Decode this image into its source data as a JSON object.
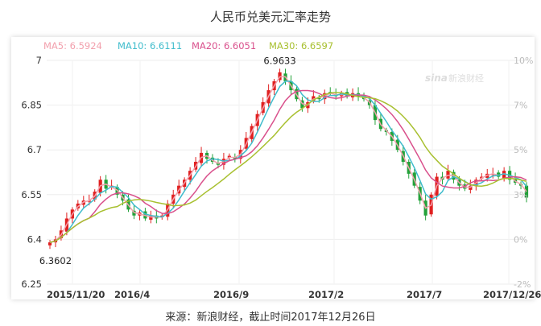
{
  "title": "人民币兑美元汇率走势",
  "caption": "来源：新浪财经，截止时间2017年12月26日",
  "watermark": "新浪财经",
  "colors": {
    "up": "#e02020",
    "down": "#23a23a",
    "ma5": "#f2a0ad",
    "ma10": "#3fbccc",
    "ma20": "#d9508c",
    "ma30": "#a8c030"
  },
  "chart_data": {
    "type": "candlestick",
    "legend": [
      {
        "name": "MA5",
        "text": "MA5: 6.5924",
        "color": "#f2a0ad"
      },
      {
        "name": "MA10",
        "text": "MA10: 6.6111",
        "color": "#3fbccc"
      },
      {
        "name": "MA20",
        "text": "MA20: 6.6051",
        "color": "#d9508c"
      },
      {
        "name": "MA30",
        "text": "MA30: 6.6597",
        "color": "#a8c030"
      }
    ],
    "y_ticks": [
      "7",
      "6.85",
      "6.7",
      "6.55",
      "6.4",
      "6.25"
    ],
    "y_tick_values": [
      7,
      6.85,
      6.7,
      6.55,
      6.4,
      6.25
    ],
    "ylim": [
      6.25,
      7.0
    ],
    "y2_ticks": [
      "10%",
      "7%",
      "5%",
      "3%",
      "0%",
      "-2%"
    ],
    "x_ticks": [
      "2015/11/20",
      "2016/4",
      "2016/9",
      "2017/2",
      "2017/7",
      "2017/12/26"
    ],
    "annotations": [
      {
        "label": "6.9633",
        "index": 41,
        "value": 6.9633,
        "pos": "above"
      },
      {
        "label": "6.3602",
        "index": 1,
        "value": 6.3602,
        "pos": "below"
      }
    ],
    "close": [
      6.39,
      6.4,
      6.43,
      6.47,
      6.5,
      6.52,
      6.53,
      6.53,
      6.56,
      6.6,
      6.57,
      6.58,
      6.55,
      6.53,
      6.5,
      6.48,
      6.49,
      6.47,
      6.48,
      6.47,
      6.48,
      6.52,
      6.55,
      6.58,
      6.6,
      6.63,
      6.66,
      6.69,
      6.67,
      6.66,
      6.65,
      6.67,
      6.68,
      6.67,
      6.7,
      6.74,
      6.78,
      6.82,
      6.86,
      6.9,
      6.93,
      6.96,
      6.93,
      6.9,
      6.87,
      6.84,
      6.86,
      6.88,
      6.87,
      6.89,
      6.89,
      6.88,
      6.89,
      6.88,
      6.89,
      6.88,
      6.87,
      6.85,
      6.8,
      6.77,
      6.76,
      6.73,
      6.7,
      6.66,
      6.62,
      6.58,
      6.53,
      6.48,
      6.55,
      6.61,
      6.6,
      6.63,
      6.6,
      6.58,
      6.57,
      6.58,
      6.6,
      6.61,
      6.62,
      6.62,
      6.61,
      6.63,
      6.6,
      6.59,
      6.58,
      6.54
    ]
  }
}
